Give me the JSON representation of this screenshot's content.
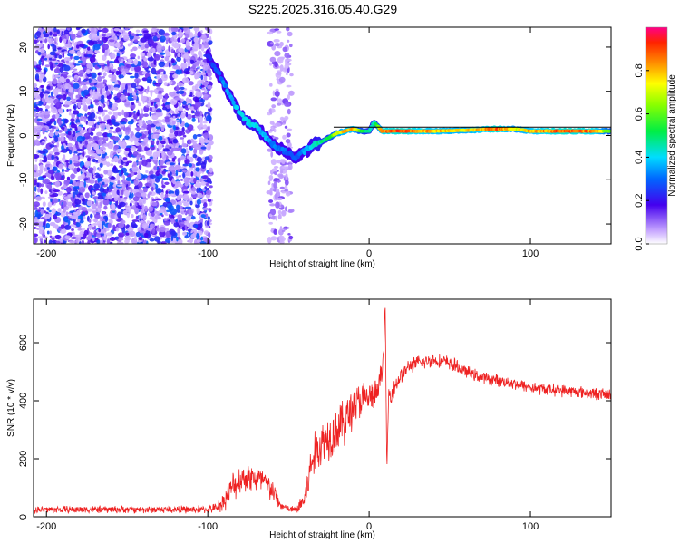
{
  "figure": {
    "title": "S225.2025.316.05.40.G29"
  },
  "chart_data": [
    {
      "type": "heatmap",
      "title": "S225.2025.316.05.40.G29",
      "xlabel": "Height of straight line (km)",
      "ylabel": "Frequency (Hz)",
      "xlim": [
        -208,
        150
      ],
      "ylim": [
        -24.5,
        24.5
      ],
      "xticks": [
        "-200",
        "-100",
        "0",
        "100"
      ],
      "xtick_values": [
        -200,
        -100,
        0,
        100
      ],
      "yticks": [
        "-20",
        "-10",
        "0",
        "10",
        "20"
      ],
      "ytick_values": [
        -20,
        -10,
        0,
        10,
        20
      ],
      "colorbar": {
        "label": "Normalized spectral amplitude",
        "range": [
          0,
          1
        ],
        "ticks": [
          "0.0",
          "0.2",
          "0.4",
          "0.6",
          "0.8"
        ],
        "tick_values": [
          0,
          0.2,
          0.4,
          0.6,
          0.8
        ]
      },
      "ridge": {
        "name": "spectral peak ridge",
        "x": [
          -100,
          -95,
          -90,
          -85,
          -80,
          -75,
          -70,
          -65,
          -60,
          -55,
          -50,
          -45,
          -42,
          -38,
          -34,
          -30,
          -25,
          -20,
          -15,
          -10,
          -5,
          0,
          3,
          8,
          20,
          40,
          60,
          80,
          90,
          100,
          120,
          140,
          150
        ],
        "y": [
          18,
          15,
          12,
          8,
          5,
          3,
          2,
          0,
          -2,
          -3,
          -4,
          -5,
          -4,
          -3,
          -2,
          -1.5,
          -0.5,
          0.5,
          1,
          1.5,
          1,
          1,
          3,
          1,
          1,
          1,
          1.2,
          1.5,
          1.5,
          1,
          1,
          1,
          1
        ],
        "amplitude": [
          0.25,
          0.3,
          0.35,
          0.4,
          0.45,
          0.45,
          0.45,
          0.4,
          0.35,
          0.35,
          0.3,
          0.3,
          0.35,
          0.4,
          0.45,
          0.5,
          0.55,
          0.75,
          0.85,
          0.85,
          0.6,
          0.5,
          0.45,
          0.9,
          0.95,
          0.85,
          0.8,
          0.95,
          0.75,
          0.85,
          0.95,
          0.9,
          0.6
        ]
      },
      "noise_regions": [
        {
          "x_range": [
            -208,
            -98
          ],
          "y_range": [
            -24.5,
            24.5
          ],
          "amplitude_range": [
            0.05,
            0.3
          ]
        },
        {
          "x_range": [
            -62,
            -48
          ],
          "y_range": [
            -24.5,
            24.5
          ],
          "amplitude_range": [
            0.05,
            0.15
          ]
        }
      ]
    },
    {
      "type": "line",
      "xlabel": "Height of straight line (km)",
      "ylabel": "SNR (10 * v/v)",
      "xlim": [
        -208,
        150
      ],
      "ylim": [
        0,
        750
      ],
      "xticks": [
        "-200",
        "-100",
        "0",
        "100"
      ],
      "xtick_values": [
        -200,
        -100,
        0,
        100
      ],
      "yticks": [
        "0",
        "200",
        "400",
        "600"
      ],
      "ytick_values": [
        0,
        200,
        400,
        600
      ],
      "series": [
        {
          "name": "SNR",
          "color": "#ee2222",
          "x": [
            -208,
            -180,
            -150,
            -120,
            -100,
            -95,
            -90,
            -85,
            -80,
            -75,
            -70,
            -65,
            -60,
            -55,
            -50,
            -45,
            -40,
            -35,
            -30,
            -25,
            -20,
            -15,
            -10,
            -5,
            0,
            5,
            9,
            10,
            11,
            12,
            15,
            20,
            25,
            30,
            40,
            50,
            60,
            70,
            80,
            90,
            100,
            110,
            120,
            130,
            140,
            150
          ],
          "values": [
            25,
            25,
            25,
            25,
            25,
            30,
            55,
            100,
            130,
            140,
            130,
            120,
            90,
            40,
            25,
            25,
            60,
            200,
            250,
            280,
            300,
            330,
            380,
            400,
            410,
            420,
            550,
            740,
            150,
            410,
            440,
            490,
            520,
            530,
            540,
            530,
            500,
            480,
            470,
            460,
            445,
            440,
            435,
            430,
            425,
            420
          ],
          "noise_amplitude": [
            15,
            15,
            15,
            15,
            15,
            20,
            40,
            60,
            60,
            60,
            60,
            60,
            50,
            20,
            15,
            15,
            60,
            90,
            100,
            100,
            100,
            100,
            90,
            80,
            70,
            60,
            40,
            10,
            10,
            40,
            40,
            35,
            30,
            30,
            30,
            30,
            25,
            25,
            25,
            25,
            25,
            25,
            25,
            25,
            25,
            25
          ]
        }
      ]
    }
  ]
}
